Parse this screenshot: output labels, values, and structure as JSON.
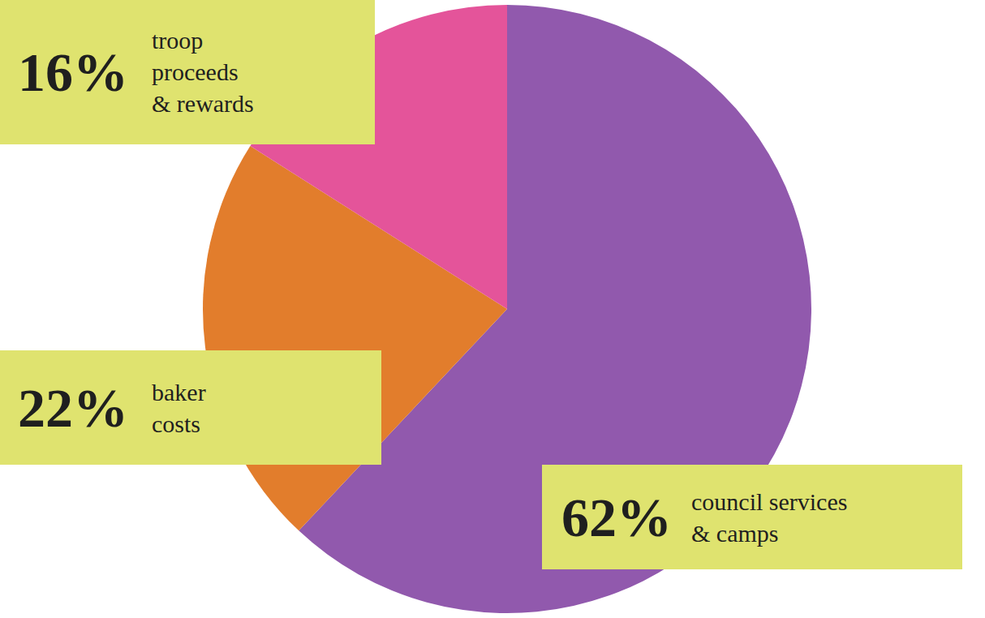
{
  "chart_data": {
    "type": "pie",
    "categories": [
      "council services & camps",
      "baker costs",
      "troop proceeds & rewards"
    ],
    "values": [
      62,
      22,
      16
    ],
    "value_labels": [
      "62%",
      "22%",
      "16%"
    ],
    "colors": [
      "#9159ad",
      "#e27d2c",
      "#e4549a"
    ],
    "data_labels": true
  }
}
